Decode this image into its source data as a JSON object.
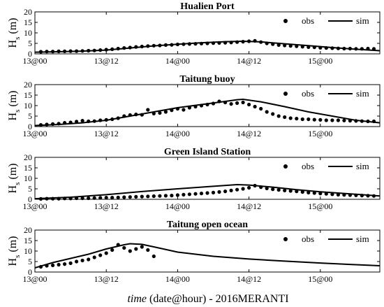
{
  "chart_data": [
    {
      "type": "line",
      "title": "Hualien Port",
      "ylabel": "H",
      "ylabel_sub": "s",
      "ylabel_unit": "(m)",
      "ylim": [
        0,
        20
      ],
      "yticks": [
        0,
        5,
        10,
        15,
        20
      ],
      "xlim": [
        0,
        58
      ],
      "grid": false,
      "legend": "top-right",
      "series": [
        {
          "name": "obs",
          "style": "markers",
          "x": [
            1,
            2,
            3,
            4,
            5,
            6,
            7,
            8,
            9,
            10,
            11,
            12,
            13,
            14,
            15,
            16,
            17,
            18,
            19,
            20,
            21,
            22,
            23,
            24,
            25,
            26,
            27,
            28,
            29,
            30,
            31,
            32,
            33,
            34,
            35,
            36,
            37,
            38,
            39,
            40,
            41,
            42,
            43,
            44,
            45,
            46,
            47,
            48,
            49,
            50,
            51,
            52,
            53,
            54,
            55,
            56,
            57
          ],
          "y": [
            1.0,
            1.1,
            1.1,
            1.2,
            1.2,
            1.3,
            1.3,
            1.4,
            1.5,
            1.6,
            1.8,
            2.0,
            2.2,
            2.5,
            2.8,
            3.0,
            3.3,
            3.5,
            3.7,
            3.9,
            4.0,
            4.2,
            4.3,
            4.5,
            4.6,
            4.7,
            4.8,
            4.9,
            5.0,
            5.1,
            5.2,
            5.3,
            5.4,
            5.6,
            5.8,
            6.0,
            6.2,
            5.6,
            5.0,
            4.6,
            4.2,
            4.0,
            3.8,
            3.6,
            3.4,
            3.2,
            3.1,
            2.9,
            2.8,
            2.7,
            2.6,
            2.5,
            2.5,
            2.4,
            2.4,
            2.5,
            2.4
          ]
        },
        {
          "name": "sim",
          "style": "line",
          "x": [
            0,
            4,
            8,
            12,
            16,
            20,
            24,
            28,
            32,
            35,
            38,
            42,
            46,
            50,
            54,
            58
          ],
          "y": [
            0.8,
            1.0,
            1.3,
            1.8,
            2.8,
            3.8,
            4.6,
            5.3,
            5.8,
            6.0,
            5.7,
            4.8,
            3.9,
            3.0,
            2.2,
            1.5
          ]
        }
      ]
    },
    {
      "type": "line",
      "title": "Taitung buoy",
      "ylabel": "H",
      "ylabel_sub": "s",
      "ylabel_unit": "(m)",
      "ylim": [
        0,
        20
      ],
      "yticks": [
        0,
        5,
        10,
        15,
        20
      ],
      "xlim": [
        0,
        58
      ],
      "grid": false,
      "legend": "top-right",
      "series": [
        {
          "name": "obs",
          "style": "markers",
          "x": [
            1,
            2,
            3,
            4,
            5,
            6,
            7,
            8,
            9,
            10,
            11,
            12,
            13,
            14,
            15,
            16,
            17,
            18,
            19,
            20,
            21,
            22,
            23,
            24,
            25,
            26,
            27,
            28,
            29,
            30,
            31,
            32,
            33,
            34,
            35,
            36,
            37,
            38,
            39,
            40,
            41,
            42,
            43,
            44,
            45,
            46,
            47,
            48,
            49,
            50,
            51,
            52,
            53,
            54,
            55,
            56,
            57
          ],
          "y": [
            0.8,
            1.0,
            1.2,
            1.4,
            1.8,
            2.0,
            2.4,
            2.8,
            2.5,
            2.6,
            3.0,
            3.2,
            3.5,
            4.0,
            5.0,
            5.5,
            5.8,
            5.6,
            8.0,
            6.2,
            6.5,
            7.0,
            7.8,
            8.5,
            8.0,
            9.0,
            9.5,
            10.0,
            10.5,
            11.0,
            12.0,
            11.5,
            10.8,
            11.2,
            11.5,
            10.5,
            9.5,
            8.5,
            7.0,
            6.0,
            5.0,
            4.5,
            4.0,
            3.8,
            3.5,
            3.5,
            3.3,
            3.2,
            3.0,
            3.0,
            3.0,
            2.9,
            2.8,
            2.7,
            2.6,
            2.5,
            2.5
          ]
        },
        {
          "name": "sim",
          "style": "line",
          "x": [
            0,
            4,
            8,
            12,
            16,
            20,
            24,
            28,
            32,
            34,
            35,
            38,
            42,
            46,
            50,
            54,
            58
          ],
          "y": [
            0.5,
            1.0,
            1.8,
            3.0,
            5.0,
            7.0,
            9.0,
            10.5,
            12.0,
            12.8,
            13.0,
            11.8,
            9.5,
            7.0,
            5.0,
            3.0,
            1.8
          ]
        }
      ]
    },
    {
      "type": "line",
      "title": "Green Island Station",
      "ylabel": "H",
      "ylabel_sub": "s",
      "ylabel_unit": "(m)",
      "ylim": [
        0,
        20
      ],
      "yticks": [
        0,
        5,
        10,
        15,
        20
      ],
      "xlim": [
        0,
        58
      ],
      "grid": false,
      "legend": "top-right",
      "series": [
        {
          "name": "obs",
          "style": "markers",
          "x": [
            1,
            2,
            3,
            4,
            5,
            6,
            7,
            8,
            9,
            10,
            11,
            12,
            13,
            14,
            15,
            16,
            17,
            18,
            19,
            20,
            21,
            22,
            23,
            24,
            25,
            26,
            27,
            28,
            29,
            30,
            31,
            32,
            33,
            34,
            35,
            36,
            37,
            38,
            39,
            40,
            41,
            42,
            43,
            44,
            45,
            46,
            47,
            48,
            49,
            50,
            51,
            52,
            53,
            54,
            55,
            56,
            57
          ],
          "y": [
            0.2,
            0.3,
            0.3,
            0.3,
            0.4,
            0.4,
            0.5,
            0.5,
            0.5,
            0.6,
            0.7,
            0.8,
            0.8,
            0.9,
            1.0,
            1.1,
            1.2,
            1.3,
            1.4,
            1.5,
            1.6,
            1.7,
            1.8,
            2.0,
            2.2,
            2.4,
            2.6,
            2.8,
            3.0,
            3.2,
            3.5,
            3.8,
            4.2,
            4.6,
            5.0,
            5.5,
            6.5,
            5.8,
            5.2,
            4.8,
            4.5,
            4.2,
            4.0,
            3.8,
            3.5,
            3.2,
            3.0,
            2.8,
            2.6,
            2.4,
            2.2,
            2.1,
            2.0,
            1.9,
            1.8,
            1.7,
            1.6
          ]
        },
        {
          "name": "sim",
          "style": "line",
          "x": [
            0,
            6,
            12,
            18,
            24,
            30,
            34,
            36,
            40,
            44,
            48,
            52,
            56,
            58
          ],
          "y": [
            0.3,
            1.0,
            2.2,
            3.7,
            5.0,
            6.2,
            7.0,
            6.8,
            5.8,
            4.6,
            3.6,
            2.8,
            2.0,
            1.6
          ]
        }
      ]
    },
    {
      "type": "line",
      "title": "Taitung open ocean",
      "ylabel": "H",
      "ylabel_sub": "s",
      "ylabel_unit": "(m)",
      "ylim": [
        0,
        20
      ],
      "yticks": [
        0,
        5,
        10,
        15,
        20
      ],
      "xlim": [
        0,
        58
      ],
      "xticks": [
        0,
        12,
        24,
        36,
        48
      ],
      "xticklabels": [
        "13@00",
        "13@12",
        "14@00",
        "14@12",
        "15@00"
      ],
      "xlabel_italic": "time",
      "xlabel_rest": "(date@hour) - 2016MERANTI",
      "grid": false,
      "legend": "top-right",
      "series": [
        {
          "name": "obs",
          "style": "markers",
          "x": [
            1,
            2,
            3,
            4,
            5,
            6,
            7,
            8,
            9,
            10,
            11,
            12,
            13,
            14,
            15,
            16,
            17,
            18,
            19,
            20
          ],
          "y": [
            2.5,
            3.0,
            3.2,
            3.5,
            3.8,
            4.2,
            5.0,
            5.5,
            6.0,
            7.0,
            8.0,
            9.0,
            10.5,
            13.0,
            11.5,
            10.0,
            11.0,
            12.0,
            10.5,
            7.5
          ]
        },
        {
          "name": "sim",
          "style": "line",
          "x": [
            0,
            3,
            6,
            9,
            12,
            15,
            16,
            18,
            20,
            24,
            30,
            36,
            42,
            48,
            54,
            58
          ],
          "y": [
            2.0,
            4.5,
            6.5,
            8.5,
            11.0,
            13.0,
            13.5,
            13.2,
            12.0,
            9.5,
            7.5,
            6.2,
            5.2,
            4.3,
            3.5,
            3.0
          ]
        }
      ]
    }
  ]
}
